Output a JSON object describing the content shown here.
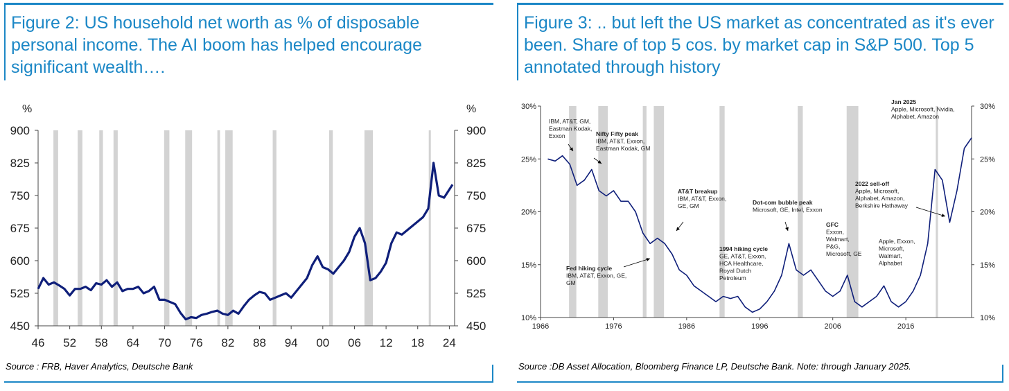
{
  "colors": {
    "accent": "#1b87c6",
    "line": "#0f1f7a",
    "recession": "#d3d3d3"
  },
  "left": {
    "title": "Figure 2: US household net worth as % of disposable personal income. The AI boom has helped encourage significant wealth….",
    "source": "Source : FRB, Haver Analytics, Deutsche Bank"
  },
  "right": {
    "title": "Figure 3: .. but left the US market as concentrated as it's ever been. Share of top 5 cos. by market cap in S&P 500. Top 5 annotated through history",
    "source": "Source :DB Asset Allocation, Bloomberg Finance LP, Deutsche Bank. Note: through January 2025."
  },
  "chart_data": [
    {
      "type": "line",
      "title": "Figure 2: US household net worth as % of disposable personal income. The AI boom has helped encourage significant wealth….",
      "ylabel": "%",
      "ylabel_right": "%",
      "ylim": [
        450,
        900
      ],
      "yticks": [
        450,
        525,
        600,
        675,
        750,
        825,
        900
      ],
      "xlim": [
        1946,
        2025
      ],
      "xticks": [
        1946,
        1952,
        1958,
        1964,
        1970,
        1976,
        1982,
        1988,
        1994,
        2000,
        2006,
        2012,
        2018,
        2024
      ],
      "xtick_labels": [
        "46",
        "52",
        "58",
        "64",
        "70",
        "76",
        "82",
        "88",
        "94",
        "00",
        "06",
        "12",
        "18",
        "24"
      ],
      "grid": false,
      "recessions": [
        [
          1948.9,
          1949.8
        ],
        [
          1953.5,
          1954.4
        ],
        [
          1957.6,
          1958.3
        ],
        [
          1960.3,
          1961.1
        ],
        [
          1969.9,
          1970.9
        ],
        [
          1973.9,
          1975.2
        ],
        [
          1980.0,
          1980.5
        ],
        [
          1981.5,
          1982.9
        ],
        [
          1990.5,
          1991.2
        ],
        [
          2001.2,
          2001.9
        ],
        [
          2007.9,
          2009.5
        ],
        [
          2020.1,
          2020.4
        ]
      ],
      "series": [
        {
          "x": [
            1946,
            1947,
            1948,
            1949,
            1950,
            1951,
            1952,
            1953,
            1954,
            1955,
            1956,
            1957,
            1958,
            1959,
            1960,
            1961,
            1962,
            1963,
            1964,
            1965,
            1966,
            1967,
            1968,
            1969,
            1970,
            1971,
            1972,
            1973,
            1974,
            1975,
            1976,
            1977,
            1978,
            1979,
            1980,
            1981,
            1982,
            1983,
            1984,
            1985,
            1986,
            1987,
            1988,
            1989,
            1990,
            1991,
            1992,
            1993,
            1994,
            1995,
            1996,
            1997,
            1998,
            1999,
            2000,
            2001,
            2002,
            2003,
            2004,
            2005,
            2006,
            2007,
            2008,
            2009,
            2010,
            2011,
            2012,
            2013,
            2014,
            2015,
            2016,
            2017,
            2018,
            2019,
            2020,
            2021,
            2022,
            2023,
            2024.6
          ],
          "values": [
            535,
            560,
            545,
            550,
            543,
            535,
            520,
            535,
            535,
            540,
            532,
            548,
            545,
            555,
            540,
            550,
            530,
            535,
            535,
            540,
            525,
            530,
            540,
            510,
            510,
            505,
            500,
            480,
            465,
            470,
            468,
            475,
            478,
            482,
            485,
            478,
            475,
            485,
            478,
            495,
            510,
            520,
            528,
            525,
            510,
            515,
            520,
            525,
            515,
            530,
            545,
            560,
            590,
            610,
            585,
            580,
            570,
            585,
            600,
            620,
            655,
            675,
            640,
            555,
            560,
            575,
            595,
            640,
            665,
            660,
            670,
            680,
            690,
            700,
            720,
            825,
            750,
            745,
            775
          ]
        }
      ]
    },
    {
      "type": "line",
      "title": "Figure 3: .. but left the US market as concentrated as it's ever been. Share of top 5 cos. by market cap in S&P 500. Top 5 annotated through history",
      "ylim": [
        10,
        30
      ],
      "yticks": [
        10,
        15,
        20,
        25,
        30
      ],
      "ytick_labels": [
        "10%",
        "15%",
        "20%",
        "25%",
        "30%"
      ],
      "xlim": [
        1966,
        2025
      ],
      "xticks": [
        1966,
        1976,
        1986,
        1996,
        2006,
        2016
      ],
      "grid": false,
      "recessions": [
        [
          1969.9,
          1970.9
        ],
        [
          1973.9,
          1975.2
        ],
        [
          1980.0,
          1980.5
        ],
        [
          1981.5,
          1982.9
        ],
        [
          1990.5,
          1991.2
        ],
        [
          2001.2,
          2001.9
        ],
        [
          2007.9,
          2009.5
        ],
        [
          2020.1,
          2020.4
        ]
      ],
      "series": [
        {
          "x": [
            1967,
            1968,
            1969,
            1970,
            1971,
            1972,
            1973,
            1974,
            1975,
            1976,
            1977,
            1978,
            1979,
            1980,
            1981,
            1982,
            1983,
            1984,
            1985,
            1986,
            1987,
            1988,
            1989,
            1990,
            1991,
            1992,
            1993,
            1994,
            1995,
            1996,
            1997,
            1998,
            1999,
            2000,
            2001,
            2002,
            2003,
            2004,
            2005,
            2006,
            2007,
            2008,
            2009,
            2010,
            2011,
            2012,
            2013,
            2014,
            2015,
            2016,
            2017,
            2018,
            2019,
            2020,
            2021,
            2022,
            2023,
            2024,
            2025
          ],
          "values": [
            25,
            24.8,
            25.3,
            24.5,
            22.5,
            23,
            24,
            22,
            21.5,
            22,
            21,
            21,
            20,
            18,
            17,
            17.5,
            17,
            16,
            14.5,
            14,
            13,
            12.5,
            12,
            11.5,
            12,
            11.8,
            12,
            11,
            10.5,
            10.8,
            11.5,
            12.5,
            14,
            17,
            14.5,
            14,
            14.5,
            13.5,
            12.5,
            12,
            12.5,
            14,
            11.5,
            11,
            11.5,
            12,
            13,
            11.5,
            11,
            11.5,
            12.5,
            14,
            17,
            24,
            23,
            19,
            22,
            26,
            27
          ]
        }
      ],
      "annotations": [
        {
          "title": "",
          "lines": [
            "IBM, AT&T, GM,",
            "Eastman Kodak,",
            "Exxon"
          ]
        },
        {
          "title": "Nifty Fifty peak",
          "lines": [
            "IBM, AT&T, Exxon,",
            "Eastman Kodak, GM"
          ]
        },
        {
          "title": "AT&T breakup",
          "lines": [
            "IBM, AT&T, Exxon,",
            "GE, GM"
          ]
        },
        {
          "title": "Fed hiking cycle",
          "lines": [
            "IBM, AT&T, Exxon, GE,",
            "GM"
          ]
        },
        {
          "title": "1994 hiking cycle",
          "lines": [
            "GE, AT&T, Exxon,",
            "HCA Healthcare,",
            "Royal Dutch",
            "Petroleum"
          ]
        },
        {
          "title": "Dot-com bubble peak",
          "lines": [
            "Microsoft, GE, Intel, Exxon"
          ]
        },
        {
          "title": "GFC",
          "lines": [
            "Exxon,",
            "Walmart,",
            "P&G,",
            "Microsoft, GE"
          ]
        },
        {
          "title": "",
          "lines": [
            "Apple, Exxon,",
            "Microsoft,",
            "Walmart,",
            "Alphabet"
          ]
        },
        {
          "title": "2022 sell-off",
          "lines": [
            "Apple, Microsoft,",
            "Alphabet, Amazon,",
            "Berkshire Hathaway"
          ]
        },
        {
          "title": "Jan 2025",
          "lines": [
            "Apple, Microsoft, Nvidia,",
            "Alphabet, Amazon"
          ]
        }
      ]
    }
  ]
}
